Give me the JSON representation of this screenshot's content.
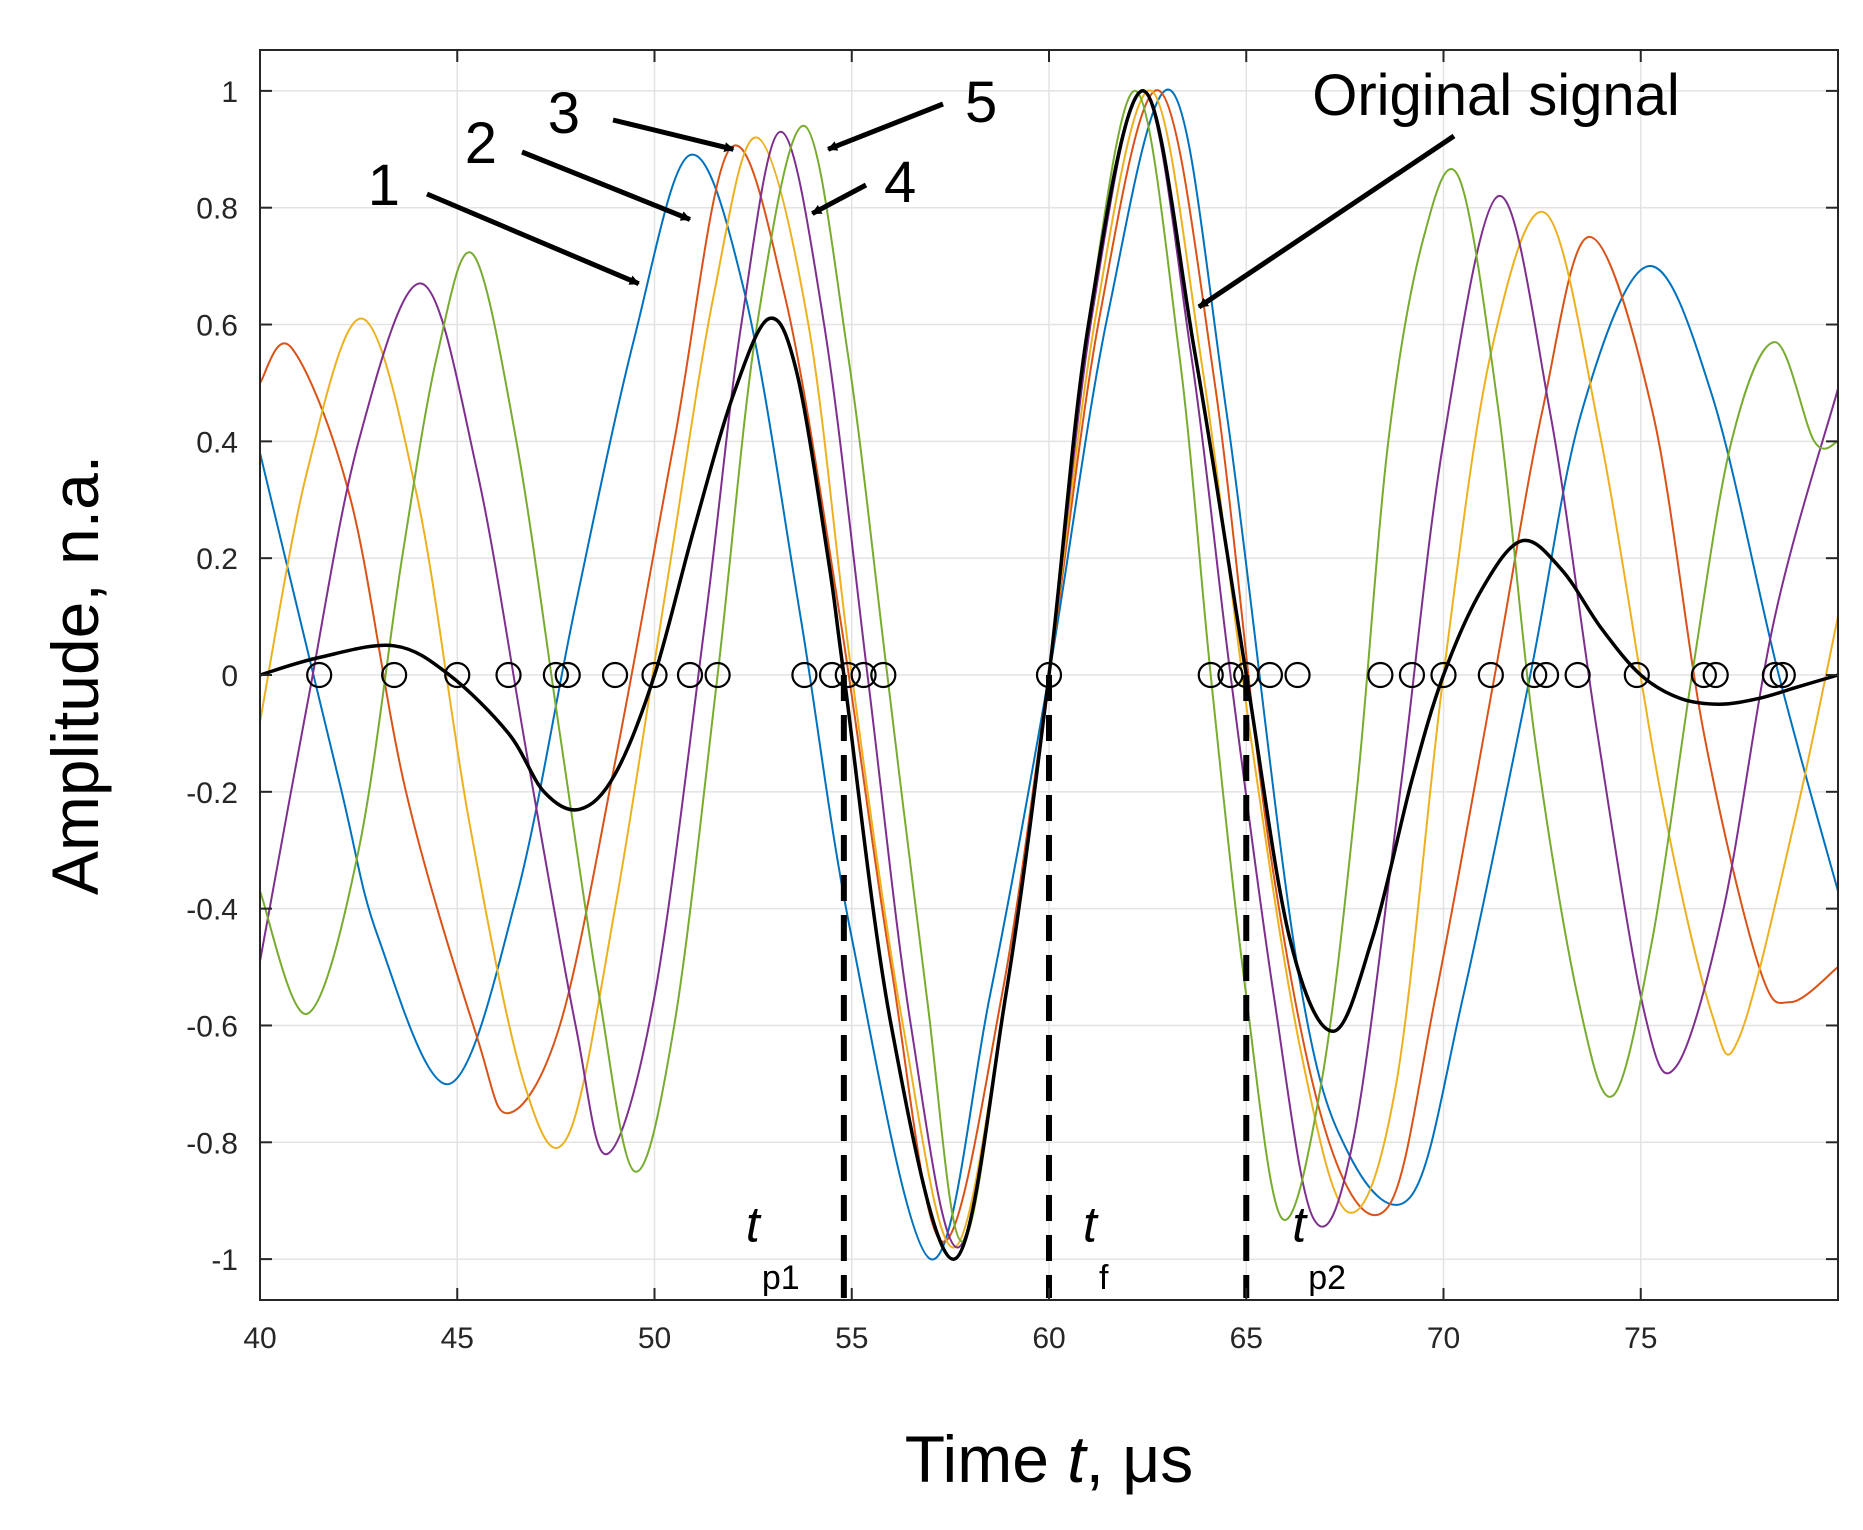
{
  "chart_data": {
    "type": "line",
    "xlabel": {
      "prefix": "Time ",
      "italic": "t",
      "suffix": ", μs"
    },
    "ylabel": "Amplitude, n.a.",
    "xlim": [
      40,
      80
    ],
    "ylim": [
      -1.07,
      1.07
    ],
    "x_ticks": [
      40,
      45,
      50,
      55,
      60,
      65,
      70,
      75
    ],
    "x_tick_labels": [
      "40",
      "45",
      "50",
      "55",
      "60",
      "65",
      "70",
      "75"
    ],
    "y_ticks": [
      -1,
      -0.8,
      -0.6,
      -0.4,
      -0.2,
      0,
      0.2,
      0.4,
      0.6,
      0.8,
      1
    ],
    "y_tick_labels": [
      "-1",
      "-0.8",
      "-0.6",
      "-0.4",
      "-0.2",
      "0",
      "0.2",
      "0.4",
      "0.6",
      "0.8",
      "1"
    ],
    "grid": true,
    "series": [
      {
        "label": "1",
        "color": "#0072BD",
        "points": [
          [
            40,
            0.38
          ],
          [
            42,
            -0.18
          ],
          [
            43,
            -0.45
          ],
          [
            44.8,
            -0.7
          ],
          [
            46.5,
            -0.38
          ],
          [
            48,
            0.12
          ],
          [
            49.5,
            0.58
          ],
          [
            50.9,
            0.89
          ],
          [
            52.3,
            0.65
          ],
          [
            53.7,
            0.1
          ],
          [
            55,
            -0.45
          ],
          [
            57,
            -1.0
          ],
          [
            58.5,
            -0.55
          ],
          [
            60,
            0.0
          ],
          [
            61.5,
            0.62
          ],
          [
            63.1,
            1.0
          ],
          [
            64.5,
            0.45
          ],
          [
            66.3,
            -0.5
          ],
          [
            67.6,
            -0.82
          ],
          [
            69.2,
            -0.89
          ],
          [
            70.5,
            -0.55
          ],
          [
            72.2,
            0.0
          ],
          [
            73.5,
            0.45
          ],
          [
            75.2,
            0.7
          ],
          [
            76.8,
            0.48
          ],
          [
            78.5,
            0.0
          ],
          [
            80,
            -0.37
          ]
        ]
      },
      {
        "label": "2",
        "color": "#D95319",
        "points": [
          [
            40,
            0.5
          ],
          [
            40.8,
            0.56
          ],
          [
            42.3,
            0.3
          ],
          [
            43.7,
            -0.2
          ],
          [
            45.5,
            -0.62
          ],
          [
            46.3,
            -0.75
          ],
          [
            47.6,
            -0.6
          ],
          [
            49,
            -0.15
          ],
          [
            50.5,
            0.4
          ],
          [
            51.9,
            0.9
          ],
          [
            53.3,
            0.65
          ],
          [
            54.7,
            0.1
          ],
          [
            56,
            -0.5
          ],
          [
            57.3,
            -0.97
          ],
          [
            58.8,
            -0.55
          ],
          [
            60,
            0.0
          ],
          [
            61.3,
            0.62
          ],
          [
            62.8,
            1.0
          ],
          [
            64.2,
            0.5
          ],
          [
            65.6,
            -0.3
          ],
          [
            67.1,
            -0.8
          ],
          [
            68.6,
            -0.91
          ],
          [
            69.8,
            -0.55
          ],
          [
            71.3,
            0.0
          ],
          [
            72.5,
            0.45
          ],
          [
            73.7,
            0.75
          ],
          [
            75.3,
            0.45
          ],
          [
            76.6,
            -0.1
          ],
          [
            78,
            -0.5
          ],
          [
            78.8,
            -0.56
          ],
          [
            80,
            -0.5
          ]
        ]
      },
      {
        "label": "3",
        "color": "#EDB120",
        "points": [
          [
            40,
            -0.08
          ],
          [
            41.2,
            0.35
          ],
          [
            42.6,
            0.61
          ],
          [
            44,
            0.3
          ],
          [
            45.3,
            -0.25
          ],
          [
            46.7,
            -0.7
          ],
          [
            47.8,
            -0.79
          ],
          [
            49,
            -0.4
          ],
          [
            50.3,
            0.15
          ],
          [
            51.5,
            0.65
          ],
          [
            52.6,
            0.92
          ],
          [
            53.9,
            0.6
          ],
          [
            55,
            0.0
          ],
          [
            56.3,
            -0.6
          ],
          [
            57.6,
            -0.98
          ],
          [
            58.9,
            -0.55
          ],
          [
            60,
            0.0
          ],
          [
            61.2,
            0.62
          ],
          [
            62.6,
            1.0
          ],
          [
            63.9,
            0.52
          ],
          [
            65.1,
            -0.1
          ],
          [
            66.4,
            -0.65
          ],
          [
            67.6,
            -0.92
          ],
          [
            68.8,
            -0.7
          ],
          [
            70,
            0.0
          ],
          [
            71.2,
            0.55
          ],
          [
            72.6,
            0.79
          ],
          [
            74,
            0.4
          ],
          [
            75.5,
            -0.2
          ],
          [
            76.8,
            -0.58
          ],
          [
            77.5,
            -0.62
          ],
          [
            78.9,
            -0.25
          ],
          [
            80,
            0.1
          ]
        ]
      },
      {
        "label": "4",
        "color": "#7E2F8E",
        "points": [
          [
            40,
            -0.49
          ],
          [
            41.2,
            -0.05
          ],
          [
            42.5,
            0.4
          ],
          [
            44.1,
            0.67
          ],
          [
            45.5,
            0.35
          ],
          [
            46.8,
            -0.15
          ],
          [
            48,
            -0.6
          ],
          [
            48.8,
            -0.82
          ],
          [
            50,
            -0.55
          ],
          [
            51.3,
            0.1
          ],
          [
            52.2,
            0.6
          ],
          [
            53.2,
            0.93
          ],
          [
            54.3,
            0.6
          ],
          [
            55.4,
            0.0
          ],
          [
            56.5,
            -0.6
          ],
          [
            57.7,
            -0.98
          ],
          [
            58.9,
            -0.55
          ],
          [
            60,
            0.0
          ],
          [
            61.1,
            0.62
          ],
          [
            62.4,
            1.0
          ],
          [
            63.6,
            0.55
          ],
          [
            64.6,
            0.0
          ],
          [
            65.7,
            -0.55
          ],
          [
            66.7,
            -0.93
          ],
          [
            67.7,
            -0.8
          ],
          [
            68.9,
            -0.2
          ],
          [
            70,
            0.4
          ],
          [
            71.4,
            0.82
          ],
          [
            72.7,
            0.45
          ],
          [
            73.9,
            -0.1
          ],
          [
            75.1,
            -0.58
          ],
          [
            75.9,
            -0.67
          ],
          [
            77.1,
            -0.4
          ],
          [
            78.4,
            0.1
          ],
          [
            80,
            0.49
          ]
        ]
      },
      {
        "label": "5",
        "color": "#77AC30",
        "points": [
          [
            40,
            -0.37
          ],
          [
            41.2,
            -0.58
          ],
          [
            42.5,
            -0.3
          ],
          [
            43.6,
            0.2
          ],
          [
            44.5,
            0.55
          ],
          [
            45.4,
            0.72
          ],
          [
            46.5,
            0.4
          ],
          [
            47.6,
            -0.1
          ],
          [
            48.6,
            -0.55
          ],
          [
            49.5,
            -0.85
          ],
          [
            50.5,
            -0.6
          ],
          [
            51.6,
            0.0
          ],
          [
            52.6,
            0.6
          ],
          [
            53.8,
            0.94
          ],
          [
            54.9,
            0.55
          ],
          [
            55.9,
            0.0
          ],
          [
            56.9,
            -0.55
          ],
          [
            57.8,
            -0.97
          ],
          [
            58.9,
            -0.55
          ],
          [
            60,
            0.0
          ],
          [
            61,
            0.6
          ],
          [
            62.2,
            1.0
          ],
          [
            63.3,
            0.55
          ],
          [
            64.1,
            0.0
          ],
          [
            65,
            -0.55
          ],
          [
            65.9,
            -0.93
          ],
          [
            66.9,
            -0.7
          ],
          [
            67.8,
            -0.2
          ],
          [
            68.6,
            0.4
          ],
          [
            69.5,
            0.75
          ],
          [
            70.4,
            0.85
          ],
          [
            71.4,
            0.45
          ],
          [
            72.3,
            -0.1
          ],
          [
            73.4,
            -0.55
          ],
          [
            74.3,
            -0.72
          ],
          [
            75.3,
            -0.45
          ],
          [
            76.3,
            0.0
          ],
          [
            77.3,
            0.4
          ],
          [
            78.4,
            0.57
          ],
          [
            79.4,
            0.4
          ],
          [
            80,
            0.4
          ]
        ]
      },
      {
        "label": "Original signal",
        "color": "#000000",
        "width": 3.5,
        "points": [
          [
            40,
            0.0
          ],
          [
            41.5,
            0.03
          ],
          [
            43.4,
            0.05
          ],
          [
            44.8,
            0.0
          ],
          [
            46.3,
            -0.1
          ],
          [
            47.2,
            -0.2
          ],
          [
            48.1,
            -0.23
          ],
          [
            49,
            -0.17
          ],
          [
            50,
            0.0
          ],
          [
            51,
            0.25
          ],
          [
            52,
            0.48
          ],
          [
            52.9,
            0.61
          ],
          [
            53.6,
            0.52
          ],
          [
            54.4,
            0.2
          ],
          [
            54.8,
            0.0
          ],
          [
            56,
            -0.6
          ],
          [
            57.6,
            -1.0
          ],
          [
            58.9,
            -0.55
          ],
          [
            60,
            0.0
          ],
          [
            61,
            0.6
          ],
          [
            62.4,
            1.0
          ],
          [
            63.7,
            0.55
          ],
          [
            65,
            0.0
          ],
          [
            66.1,
            -0.45
          ],
          [
            67.2,
            -0.61
          ],
          [
            68.2,
            -0.45
          ],
          [
            69.2,
            -0.18
          ],
          [
            70,
            0.0
          ],
          [
            71,
            0.15
          ],
          [
            72,
            0.23
          ],
          [
            73,
            0.18
          ],
          [
            74,
            0.08
          ],
          [
            75,
            0.0
          ],
          [
            76,
            -0.04
          ],
          [
            77,
            -0.05
          ],
          [
            78,
            -0.04
          ],
          [
            79,
            -0.02
          ],
          [
            80,
            0.0
          ]
        ]
      }
    ],
    "zero_crossing_markers_x": [
      41.5,
      43.4,
      45.0,
      46.3,
      47.5,
      47.8,
      49.0,
      50.0,
      50.9,
      51.6,
      53.8,
      54.5,
      54.9,
      55.3,
      55.8,
      60.0,
      64.1,
      64.6,
      65.0,
      65.6,
      66.3,
      68.4,
      69.2,
      70.0,
      71.2,
      72.3,
      72.6,
      73.4,
      74.9,
      76.6,
      76.9,
      78.4,
      78.6
    ],
    "vlines": [
      {
        "x": 54.8,
        "label": "t",
        "sub": "p1"
      },
      {
        "x": 60.0,
        "label": "t",
        "sub": "f"
      },
      {
        "x": 65.0,
        "label": "t",
        "sub": "p2"
      }
    ],
    "annotations": [
      {
        "text": "1",
        "tip": [
          49.6,
          0.67
        ]
      },
      {
        "text": "2",
        "tip": [
          50.9,
          0.78
        ]
      },
      {
        "text": "3",
        "tip": [
          52.0,
          0.9
        ]
      },
      {
        "text": "4",
        "tip": [
          54.0,
          0.79
        ]
      },
      {
        "text": "5",
        "tip": [
          54.4,
          0.9
        ]
      },
      {
        "text": "Original signal",
        "tip": [
          63.8,
          0.63
        ]
      }
    ]
  }
}
